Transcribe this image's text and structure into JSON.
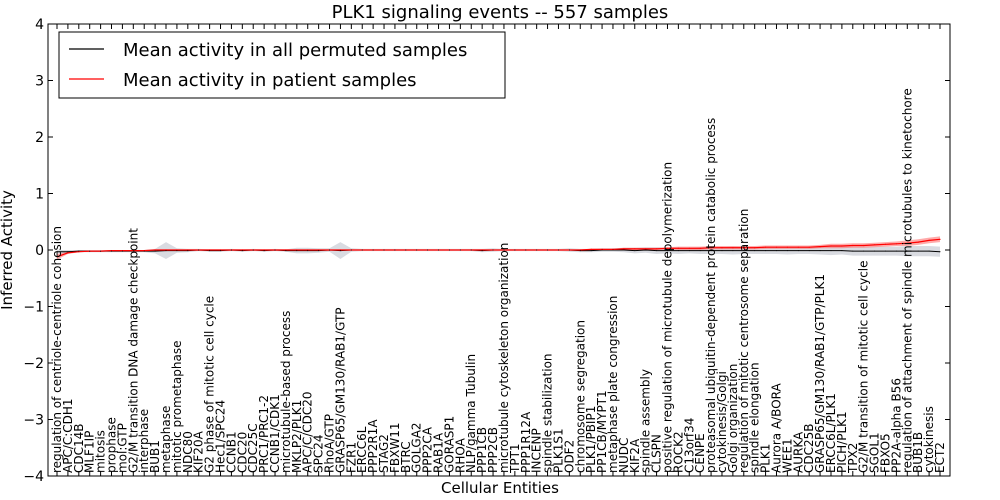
{
  "chart_data": {
    "type": "line",
    "title": "PLK1 signaling events -- 557 samples",
    "xlabel": "Cellular Entities",
    "ylabel": "Inferred Activity",
    "ylim": [
      -4,
      4
    ],
    "yticks": [
      -4,
      -3,
      -2,
      -1,
      0,
      1,
      2,
      3,
      4
    ],
    "ytick_labels": [
      "−4",
      "−3",
      "−2",
      "−1",
      "0",
      "1",
      "2",
      "3",
      "4"
    ],
    "legend_position": "top-left",
    "series": [
      {
        "name": "Mean activity in all permuted samples",
        "color": "#000000"
      },
      {
        "name": "Mean activity in patient samples",
        "color": "#ff0000"
      }
    ],
    "categories": [
      "regulation of centriole-centriole cohesion",
      "APC/C:CDH1",
      "CDC14B",
      "MLF1IP",
      "mitosis",
      "prophase",
      "mol:GTP",
      "G2/M transition DNA damage checkpoint",
      "interphase",
      "BUB1",
      "metaphase",
      "mitotic prometaphase",
      "NDC80",
      "KIF20A",
      "G2 phase of mitotic cell cycle",
      "Hec1/SPC24",
      "CCNB1",
      "CDC20",
      "CDC25C",
      "PRC1/PRC1-2",
      "CCNB1/CDK1",
      "microtubule-based process",
      "MKLP2/PLK1",
      "APC/C/CDC20",
      "SPC24",
      "RhoA/GTP",
      "GRASP65/GM130/RAB1/GTP",
      "FZR1",
      "ERCC6L",
      "PPP2R1A",
      "STAG2",
      "FBXW11",
      "BTRC",
      "GOLGA2",
      "PPP2CA",
      "RAB1A",
      "GORASP1",
      "RHOA",
      "NLP/gamma Tubulin",
      "PPP1CB",
      "PPP2CB",
      "microtubule cytoskeleton organization",
      "TPT1",
      "PPP1R12A",
      "INCENP",
      "spindle stabilization",
      "PLK1S1",
      "ODF2",
      "chromosome segregation",
      "PLK1/PBIP1",
      "PP1CB/MYPT1",
      "metaphase plate congression",
      "NUDC",
      "KIF2A",
      "spindle assembly",
      "CLSPN",
      "positive regulation of microtubule depolymerization",
      "ROCK2",
      "C13orf34",
      "CENPE",
      "proteasomal ubiquitin-dependent protein catabolic process",
      "cytokinesis/Golgi",
      "Golgi organization",
      "regulation of mitotic centrosome separation",
      "spindle elongation",
      "PLK1",
      "Aurora A/BORA",
      "WEE1",
      "AURKA",
      "CDC25B",
      "GRASP65/GM130/RAB1/GTP/PLK1",
      "ERCC6L/PLK1",
      "PICH/PLK1",
      "TPX2",
      "G2/M transition of mitotic cell cycle",
      "SGOL1",
      "FBXO5",
      "PP2A-alpha B56",
      "regulation of attachment of spindle microtubules to kinetochore",
      "BUB1B",
      "cytokinesis",
      "ECT2"
    ],
    "permuted_mean": [
      -0.03,
      -0.03,
      -0.02,
      -0.02,
      -0.02,
      -0.02,
      -0.02,
      -0.02,
      -0.02,
      -0.02,
      -0.01,
      -0.01,
      -0.01,
      0.0,
      -0.01,
      -0.01,
      0.0,
      -0.01,
      0.0,
      -0.01,
      0.0,
      -0.01,
      -0.01,
      -0.01,
      -0.01,
      0.0,
      -0.01,
      0.0,
      0.0,
      0.0,
      0.0,
      0.0,
      0.0,
      0.0,
      0.0,
      0.0,
      0.0,
      0.0,
      0.0,
      -0.01,
      0.0,
      0.0,
      0.0,
      0.0,
      0.0,
      0.0,
      0.0,
      0.0,
      -0.01,
      -0.01,
      0.0,
      0.0,
      0.0,
      -0.01,
      0.0,
      -0.01,
      -0.01,
      -0.01,
      -0.01,
      -0.01,
      -0.01,
      -0.01,
      -0.01,
      -0.01,
      -0.01,
      -0.01,
      -0.01,
      -0.01,
      -0.01,
      -0.01,
      -0.01,
      -0.01,
      -0.01,
      -0.02,
      -0.02,
      -0.02,
      -0.02,
      -0.02,
      -0.02,
      -0.02,
      -0.02,
      -0.03
    ],
    "permuted_spread": [
      0.03,
      0.03,
      0.02,
      0.02,
      0.02,
      0.02,
      0.02,
      0.02,
      0.02,
      0.04,
      0.15,
      0.04,
      0.03,
      0.02,
      0.02,
      0.02,
      0.02,
      0.02,
      0.02,
      0.02,
      0.02,
      0.02,
      0.05,
      0.05,
      0.04,
      0.03,
      0.15,
      0.03,
      0.02,
      0.02,
      0.02,
      0.02,
      0.02,
      0.02,
      0.02,
      0.02,
      0.02,
      0.02,
      0.02,
      0.03,
      0.03,
      0.02,
      0.02,
      0.02,
      0.02,
      0.02,
      0.02,
      0.03,
      0.03,
      0.03,
      0.03,
      0.03,
      0.04,
      0.05,
      0.05,
      0.06,
      0.05,
      0.06,
      0.05,
      0.06,
      0.06,
      0.06,
      0.07,
      0.06,
      0.06,
      0.06,
      0.06,
      0.07,
      0.06,
      0.06,
      0.07,
      0.08,
      0.07,
      0.08,
      0.08,
      0.08,
      0.08,
      0.08,
      0.09,
      0.09,
      0.09,
      0.09
    ],
    "patient_mean": [
      -0.12,
      -0.05,
      -0.03,
      -0.02,
      -0.02,
      -0.01,
      -0.01,
      -0.01,
      -0.01,
      0.0,
      0.0,
      0.0,
      0.0,
      0.0,
      0.0,
      0.0,
      0.0,
      0.0,
      0.0,
      0.0,
      0.0,
      0.0,
      0.0,
      0.0,
      0.0,
      0.0,
      0.0,
      0.0,
      0.0,
      0.0,
      0.0,
      0.0,
      0.0,
      0.0,
      0.0,
      0.0,
      0.0,
      0.0,
      0.0,
      0.0,
      0.0,
      0.0,
      0.0,
      0.0,
      0.0,
      0.0,
      0.0,
      0.0,
      0.0,
      0.01,
      0.01,
      0.01,
      0.02,
      0.02,
      0.02,
      0.02,
      0.03,
      0.03,
      0.03,
      0.03,
      0.04,
      0.04,
      0.04,
      0.04,
      0.04,
      0.05,
      0.05,
      0.05,
      0.05,
      0.05,
      0.06,
      0.07,
      0.07,
      0.08,
      0.08,
      0.09,
      0.1,
      0.11,
      0.12,
      0.14,
      0.17,
      0.19
    ],
    "patient_spread": [
      0.05,
      0.02,
      0.01,
      0.01,
      0.01,
      0.01,
      0.01,
      0.01,
      0.01,
      0.01,
      0.01,
      0.01,
      0.01,
      0.01,
      0.01,
      0.01,
      0.01,
      0.01,
      0.01,
      0.01,
      0.01,
      0.01,
      0.01,
      0.01,
      0.01,
      0.01,
      0.01,
      0.01,
      0.01,
      0.01,
      0.01,
      0.01,
      0.01,
      0.01,
      0.01,
      0.01,
      0.01,
      0.01,
      0.01,
      0.01,
      0.01,
      0.01,
      0.01,
      0.01,
      0.01,
      0.01,
      0.01,
      0.01,
      0.01,
      0.01,
      0.01,
      0.01,
      0.02,
      0.02,
      0.02,
      0.02,
      0.02,
      0.03,
      0.03,
      0.03,
      0.03,
      0.03,
      0.03,
      0.03,
      0.03,
      0.03,
      0.03,
      0.03,
      0.03,
      0.03,
      0.03,
      0.04,
      0.04,
      0.04,
      0.04,
      0.04,
      0.04,
      0.04,
      0.05,
      0.05,
      0.05,
      0.05
    ]
  }
}
